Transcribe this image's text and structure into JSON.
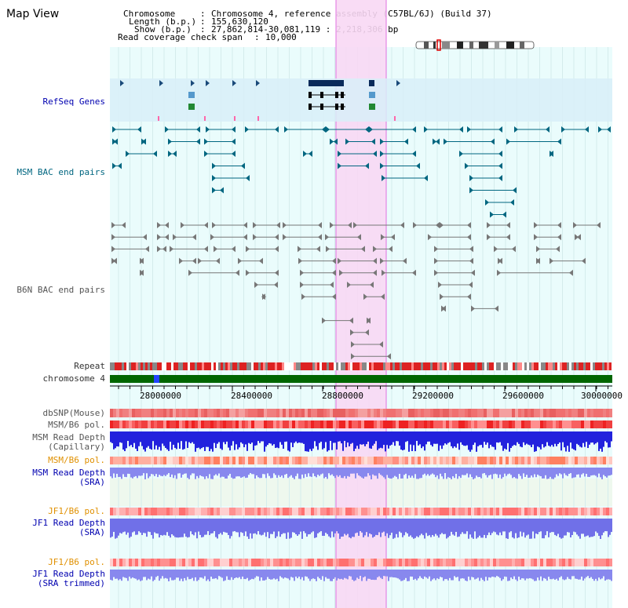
{
  "page": {
    "title": "Map View"
  },
  "info": {
    "chromosome_label": "Chromosome",
    "chromosome_value": "Chromosome 4, reference assembly (C57BL/6J) (Build 37)",
    "length_label": "Length (b.p.)",
    "length_value": "155,630,120",
    "show_label": "Show (b.p.)",
    "show_value": "27,862,814-30,081,119 : 2,218,306 bp",
    "coverage_label": "Read coverage check span",
    "coverage_value": "10,000"
  },
  "tracks": {
    "refseq": "RefSeq Genes",
    "msm_bac": "MSM BAC end pairs",
    "b6n_bac": "B6N BAC end pairs",
    "repeat": "Repeat",
    "chromosome": "chromosome 4",
    "dbsnp": "dbSNP(Mouse)",
    "msm_b6_pol": "MSM/B6 pol.",
    "msm_read_depth_cap_1": "MSM Read Depth",
    "msm_read_depth_cap_2": "(Capillary)",
    "msm_b6_pol_2": "MSM/B6 pol.",
    "msm_read_depth_sra_1": "MSM Read Depth",
    "msm_read_depth_sra_2": "(SRA)",
    "jf1_b6_pol": "JF1/B6 pol.",
    "jf1_read_depth_1": "JF1 Read Depth",
    "jf1_read_depth_2": "(SRA)",
    "jf1_b6_pol_2": "JF1/B6 pol.",
    "jf1_trim_1": "JF1 Read Depth",
    "jf1_trim_2": "(SRA trimmed)"
  },
  "axis": {
    "ticks": [
      "28000000",
      "28400000",
      "28800000",
      "29200000",
      "29600000",
      "30000000"
    ]
  },
  "colors": {
    "refseq_band": "#d8eef8",
    "highlight": "#f8d8f4",
    "bac_teal": "#006680",
    "bac_gray": "#555555",
    "chromosome_green": "#006600",
    "snp_red": "#ee3333",
    "depth_blue": "#2222dd",
    "depth_light": "#8888ee"
  }
}
